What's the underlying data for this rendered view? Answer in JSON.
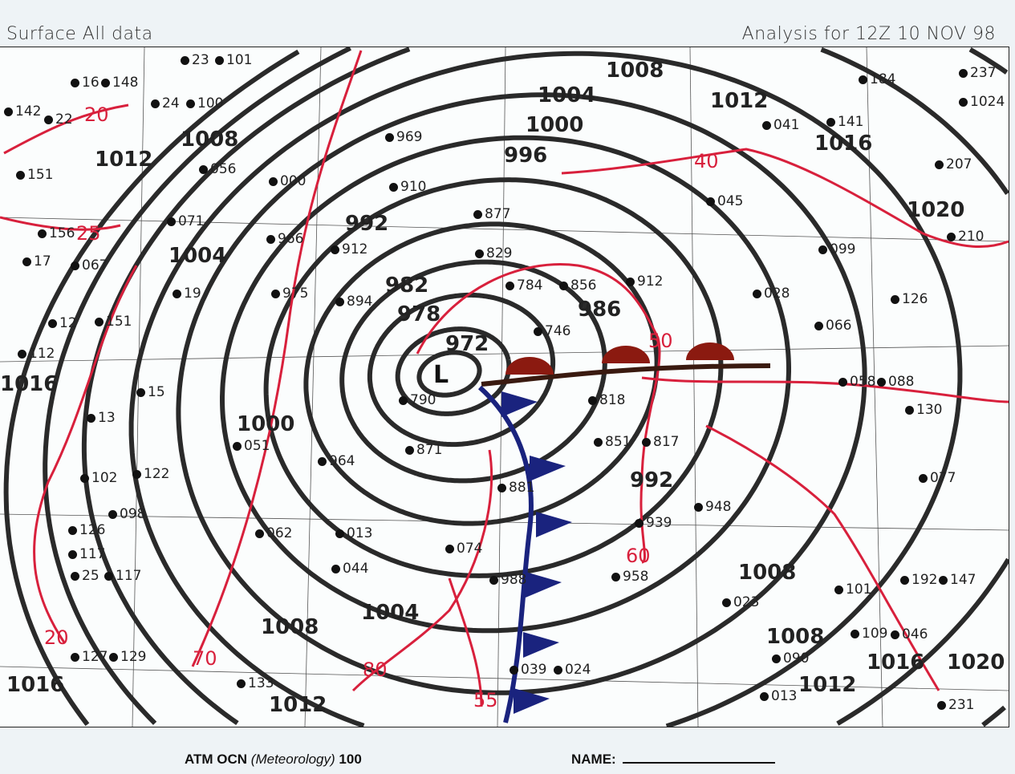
{
  "header": {
    "left": "Surface All data",
    "right": "Analysis for 12Z 10 NOV 98"
  },
  "footer": {
    "course": "ATM OCN",
    "course_sub": "(Meteorology)",
    "course_num": "100",
    "name_label": "NAME:"
  },
  "low_center_label": "L",
  "isobar_labels": [
    "1004",
    "1008",
    "1012",
    "1016",
    "1020",
    "1000",
    "996",
    "992",
    "982",
    "978",
    "972",
    "986",
    "1004",
    "1008",
    "1012",
    "1000",
    "1004",
    "1008",
    "1012",
    "1016",
    "992",
    "1008",
    "1008",
    "1012",
    "1016",
    "1020",
    "1016"
  ],
  "isotherm_labels": [
    "20",
    "25",
    "40",
    "50",
    "60",
    "70",
    "80",
    "20",
    "55"
  ],
  "stations": [
    "23",
    "101",
    "16",
    "148",
    "142",
    "22",
    "24",
    "100",
    "151",
    "056",
    "071",
    "156",
    "17",
    "067",
    "19",
    "151",
    "12",
    "112",
    "15",
    "13",
    "102",
    "122",
    "098",
    "126",
    "117",
    "25",
    "117",
    "127",
    "129",
    "133",
    "969",
    "910",
    "877",
    "829",
    "784",
    "894",
    "975",
    "966",
    "912",
    "000",
    "051",
    "871",
    "964",
    "062",
    "013",
    "044",
    "074",
    "988",
    "039",
    "024",
    "958",
    "939",
    "948",
    "023",
    "090",
    "013",
    "101",
    "109",
    "147",
    "192",
    "231",
    "077",
    "046",
    "130",
    "099",
    "126",
    "066",
    "058",
    "088",
    "1024",
    "237",
    "184",
    "207",
    "210",
    "045",
    "141",
    "041",
    "028",
    "912",
    "856",
    "746",
    "790",
    "818",
    "851",
    "817",
    "881"
  ],
  "colors": {
    "isobar": "#2a2a2a",
    "isotherm": "#d8203c",
    "cold_front": "#1a237e",
    "warm_front": "#8b1a10"
  }
}
